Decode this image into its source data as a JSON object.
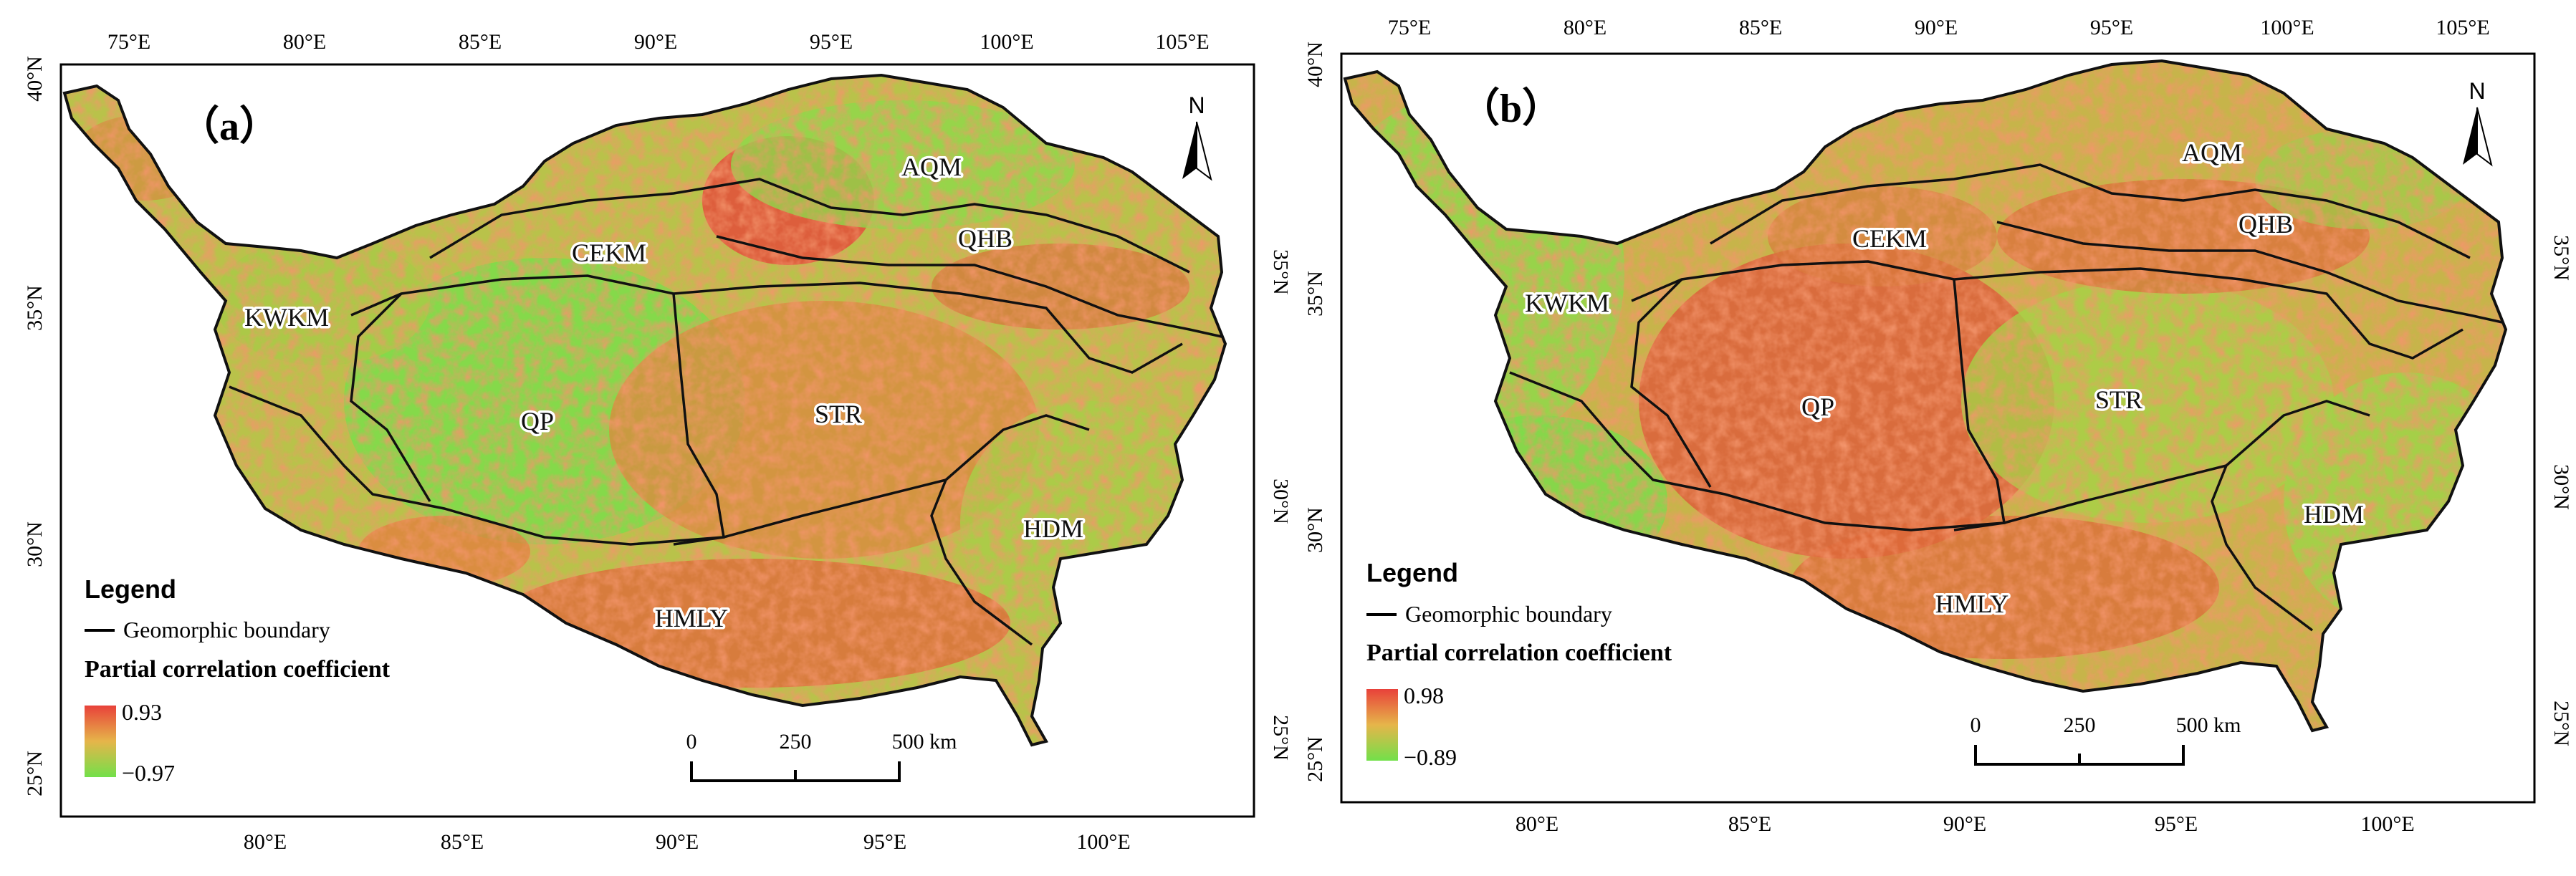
{
  "panels": [
    {
      "label": "（a）",
      "legend": {
        "title": "Legend",
        "boundary_label": "Geomorphic boundary",
        "coef_label": "Partial correlation coefficient",
        "max": "0.93",
        "min": "−0.97"
      },
      "regions": [
        "AQM",
        "QHB",
        "CEKM",
        "KWKM",
        "QP",
        "STR",
        "HDM",
        "HMLY"
      ],
      "top_ticks": [
        "75°E",
        "80°E",
        "85°E",
        "90°E",
        "95°E",
        "100°E",
        "105°E"
      ],
      "bottom_ticks": [
        "80°E",
        "85°E",
        "90°E",
        "95°E",
        "100°E"
      ],
      "left_ticks": [
        "40°N",
        "35°N",
        "30°N",
        "25°N"
      ],
      "right_ticks": [
        "35°N",
        "30°N",
        "25°N"
      ],
      "scale": {
        "labels": [
          "0",
          "250",
          "500 km"
        ]
      },
      "north": "N"
    },
    {
      "label": "（b）",
      "legend": {
        "title": "Legend",
        "boundary_label": "Geomorphic boundary",
        "coef_label": "Partial correlation coefficient",
        "max": "0.98",
        "min": "−0.89"
      },
      "regions": [
        "AQM",
        "QHB",
        "CEKM",
        "KWKM",
        "QP",
        "STR",
        "HDM",
        "HMLY"
      ],
      "top_ticks": [
        "75°E",
        "80°E",
        "85°E",
        "90°E",
        "95°E",
        "100°E",
        "105°E"
      ],
      "bottom_ticks": [
        "80°E",
        "85°E",
        "90°E",
        "95°E",
        "100°E"
      ],
      "left_ticks": [
        "40°N",
        "35°N",
        "30°N",
        "25°N"
      ],
      "right_ticks": [
        "35°N",
        "30°N",
        "25°N"
      ],
      "scale": {
        "labels": [
          "0",
          "250",
          "500 km"
        ]
      },
      "north": "N"
    }
  ],
  "colors": {
    "ramp_high": "#e8413a",
    "ramp_mid": "#e3b84a",
    "ramp_low": "#7ee04d",
    "boundary": "#111111"
  }
}
